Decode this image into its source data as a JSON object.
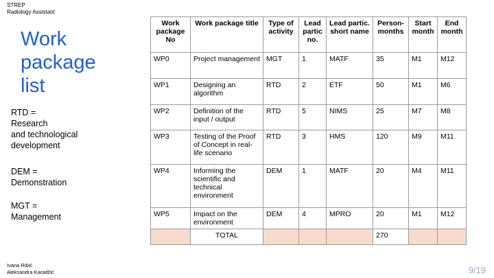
{
  "header": {
    "line1": "STREP",
    "line2": "Radiology Assistant"
  },
  "title": {
    "line1": "Work",
    "line2": "package",
    "line3": "list"
  },
  "notes": [
    {
      "lines": [
        "RTD =",
        "Research",
        "and technological",
        "development"
      ]
    },
    {
      "lines": [
        "DEM =",
        "Demonstration"
      ]
    },
    {
      "lines": [
        "MGT =",
        "Management"
      ]
    }
  ],
  "authors": {
    "line1": "Ivana Ribić",
    "line2": "Aleksandra Karadžić"
  },
  "page_number": "9/19",
  "table": {
    "headers": [
      "Work package No",
      "Work package title",
      "Type of activity",
      "Lead partic no.",
      "Lead partic. short name",
      "Person-months",
      "Start month",
      "End month"
    ],
    "rows": [
      [
        "WP0",
        "Project management",
        "MGT",
        "1",
        "MATF",
        "35",
        "M1",
        "M12"
      ],
      [
        "WP1",
        "Designing an algorithm",
        "RTD",
        "2",
        "ETF",
        "50",
        "M1",
        "M6"
      ],
      [
        "WP2",
        "Definition of the input / output",
        "RTD",
        "5",
        "NIMS",
        "25",
        "M7",
        "M8"
      ],
      [
        "WP3",
        "Testing of the Proof of Concept in real-life scenario",
        "RTD",
        "3",
        "HMS",
        "120",
        "M9",
        "M11"
      ],
      [
        "WP4",
        "Informing the scientific and technical environment",
        "DEM",
        "1",
        "MATF",
        "20",
        "M4",
        "M11"
      ],
      [
        "WP5",
        "Impact on the environment",
        "DEM",
        "4",
        "MPRO",
        "20",
        "M1",
        "M12"
      ]
    ],
    "total": {
      "label": "TOTAL",
      "value": "270"
    }
  },
  "colors": {
    "title": "#1f5fd6",
    "total_fill": "#f7dccb",
    "page_number": "#9aa9c8"
  }
}
